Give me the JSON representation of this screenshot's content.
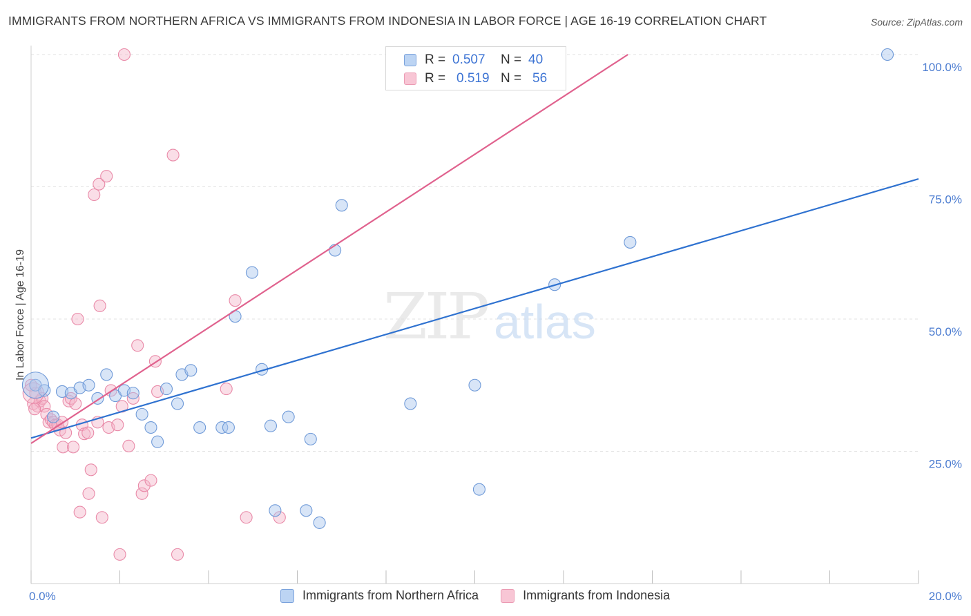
{
  "header": {
    "title": "IMMIGRANTS FROM NORTHERN AFRICA VS IMMIGRANTS FROM INDONESIA IN LABOR FORCE | AGE 16-19 CORRELATION CHART",
    "source": "Source: ZipAtlas.com"
  },
  "legend": {
    "blue": {
      "r_label": "R =",
      "r_value": "0.507",
      "n_label": "N =",
      "n_value": "40"
    },
    "pink": {
      "r_label": "R =",
      "r_value": "0.519",
      "n_label": "N =",
      "n_value": "56"
    }
  },
  "colors": {
    "blue_fill": "#a8c6ee",
    "blue_stroke": "#6f9ad8",
    "blue_line": "#2f72d0",
    "pink_fill": "#f5b6c9",
    "pink_stroke": "#e98aa8",
    "pink_line": "#e0628e",
    "tick_label": "#4a7bd0"
  },
  "chart_data": {
    "type": "scatter",
    "title": "IMMIGRANTS FROM NORTHERN AFRICA VS IMMIGRANTS FROM INDONESIA IN LABOR FORCE | AGE 16-19 CORRELATION CHART",
    "xlabel": "",
    "ylabel": "In Labor Force | Age 16-19",
    "xlim": [
      0,
      20
    ],
    "ylim": [
      0,
      100
    ],
    "x_tick_labels": [
      "0.0%",
      "20.0%"
    ],
    "y_tick_labels": [
      "25.0%",
      "50.0%",
      "75.0%",
      "100.0%"
    ],
    "y_ticks": [
      25,
      50,
      75,
      100
    ],
    "grid": true,
    "watermark": {
      "left": "ZIP",
      "right": "atlas"
    },
    "series": [
      {
        "name": "Immigrants from Northern Africa",
        "color": "blue",
        "trend": {
          "x": [
            0,
            20
          ],
          "y": [
            27.5,
            76.5
          ]
        },
        "points": [
          {
            "x": 0.1,
            "y": 37.5
          },
          {
            "x": 0.3,
            "y": 36.5
          },
          {
            "x": 0.5,
            "y": 31.5
          },
          {
            "x": 0.7,
            "y": 36.3
          },
          {
            "x": 0.9,
            "y": 36.0
          },
          {
            "x": 1.1,
            "y": 37.0
          },
          {
            "x": 1.3,
            "y": 37.5
          },
          {
            "x": 1.5,
            "y": 35.0
          },
          {
            "x": 1.7,
            "y": 39.5
          },
          {
            "x": 1.9,
            "y": 35.5
          },
          {
            "x": 2.1,
            "y": 36.5
          },
          {
            "x": 2.3,
            "y": 36.0
          },
          {
            "x": 2.5,
            "y": 32.0
          },
          {
            "x": 2.7,
            "y": 29.5
          },
          {
            "x": 2.85,
            "y": 26.8
          },
          {
            "x": 3.05,
            "y": 36.8
          },
          {
            "x": 3.3,
            "y": 34.0
          },
          {
            "x": 3.4,
            "y": 39.5
          },
          {
            "x": 3.6,
            "y": 40.3
          },
          {
            "x": 3.8,
            "y": 29.5
          },
          {
            "x": 4.3,
            "y": 29.5
          },
          {
            "x": 4.45,
            "y": 29.5
          },
          {
            "x": 4.6,
            "y": 50.5
          },
          {
            "x": 4.98,
            "y": 58.8
          },
          {
            "x": 5.2,
            "y": 40.5
          },
          {
            "x": 5.4,
            "y": 29.8
          },
          {
            "x": 5.5,
            "y": 13.8
          },
          {
            "x": 5.8,
            "y": 31.5
          },
          {
            "x": 6.2,
            "y": 13.8
          },
          {
            "x": 6.3,
            "y": 27.3
          },
          {
            "x": 6.5,
            "y": 11.5
          },
          {
            "x": 6.85,
            "y": 63.0
          },
          {
            "x": 7.0,
            "y": 71.5
          },
          {
            "x": 8.55,
            "y": 34.0
          },
          {
            "x": 9.1,
            "y": 100.0
          },
          {
            "x": 10.0,
            "y": 37.5
          },
          {
            "x": 10.1,
            "y": 17.8
          },
          {
            "x": 11.8,
            "y": 56.5
          },
          {
            "x": 13.5,
            "y": 64.5
          },
          {
            "x": 19.3,
            "y": 100.0
          }
        ]
      },
      {
        "name": "Immigrants from Indonesia",
        "color": "pink",
        "trend": {
          "x": [
            0,
            13.45
          ],
          "y": [
            26.5,
            100.0
          ]
        },
        "points": [
          {
            "x": 0.05,
            "y": 34.0
          },
          {
            "x": 0.1,
            "y": 36.0
          },
          {
            "x": 0.15,
            "y": 33.5
          },
          {
            "x": 0.2,
            "y": 34.5
          },
          {
            "x": 0.25,
            "y": 35.0
          },
          {
            "x": 0.3,
            "y": 33.5
          },
          {
            "x": 0.35,
            "y": 32.0
          },
          {
            "x": 0.4,
            "y": 30.5
          },
          {
            "x": 0.45,
            "y": 31.0
          },
          {
            "x": 0.5,
            "y": 30.5
          },
          {
            "x": 0.55,
            "y": 30.0
          },
          {
            "x": 0.6,
            "y": 30.0
          },
          {
            "x": 0.65,
            "y": 29.0
          },
          {
            "x": 0.7,
            "y": 30.5
          },
          {
            "x": 0.72,
            "y": 25.8
          },
          {
            "x": 0.78,
            "y": 28.5
          },
          {
            "x": 0.85,
            "y": 34.5
          },
          {
            "x": 0.9,
            "y": 35.0
          },
          {
            "x": 0.95,
            "y": 25.8
          },
          {
            "x": 1.0,
            "y": 34.0
          },
          {
            "x": 1.05,
            "y": 50.0
          },
          {
            "x": 1.1,
            "y": 13.5
          },
          {
            "x": 1.15,
            "y": 30.0
          },
          {
            "x": 1.2,
            "y": 28.3
          },
          {
            "x": 1.28,
            "y": 28.5
          },
          {
            "x": 1.3,
            "y": 17.0
          },
          {
            "x": 1.35,
            "y": 21.5
          },
          {
            "x": 1.42,
            "y": 73.5
          },
          {
            "x": 1.5,
            "y": 30.5
          },
          {
            "x": 1.53,
            "y": 75.5
          },
          {
            "x": 1.6,
            "y": 12.5
          },
          {
            "x": 1.7,
            "y": 77.0
          },
          {
            "x": 1.75,
            "y": 29.5
          },
          {
            "x": 1.8,
            "y": 36.5
          },
          {
            "x": 1.55,
            "y": 52.5
          },
          {
            "x": 1.95,
            "y": 30.0
          },
          {
            "x": 2.0,
            "y": 5.5
          },
          {
            "x": 2.05,
            "y": 33.5
          },
          {
            "x": 2.1,
            "y": 100.0
          },
          {
            "x": 2.2,
            "y": 26.0
          },
          {
            "x": 2.3,
            "y": 35.0
          },
          {
            "x": 2.4,
            "y": 45.0
          },
          {
            "x": 2.5,
            "y": 17.0
          },
          {
            "x": 2.55,
            "y": 18.5
          },
          {
            "x": 2.7,
            "y": 19.5
          },
          {
            "x": 2.8,
            "y": 42.0
          },
          {
            "x": 2.85,
            "y": 36.3
          },
          {
            "x": 3.2,
            "y": 81.0
          },
          {
            "x": 3.3,
            "y": 5.5
          },
          {
            "x": 4.4,
            "y": 36.8
          },
          {
            "x": 4.6,
            "y": 53.5
          },
          {
            "x": 4.85,
            "y": 12.5
          },
          {
            "x": 5.6,
            "y": 12.5
          },
          {
            "x": 10.5,
            "y": 100.0
          },
          {
            "x": 0.0,
            "y": 37.5
          },
          {
            "x": 0.08,
            "y": 33.0
          }
        ]
      }
    ]
  }
}
